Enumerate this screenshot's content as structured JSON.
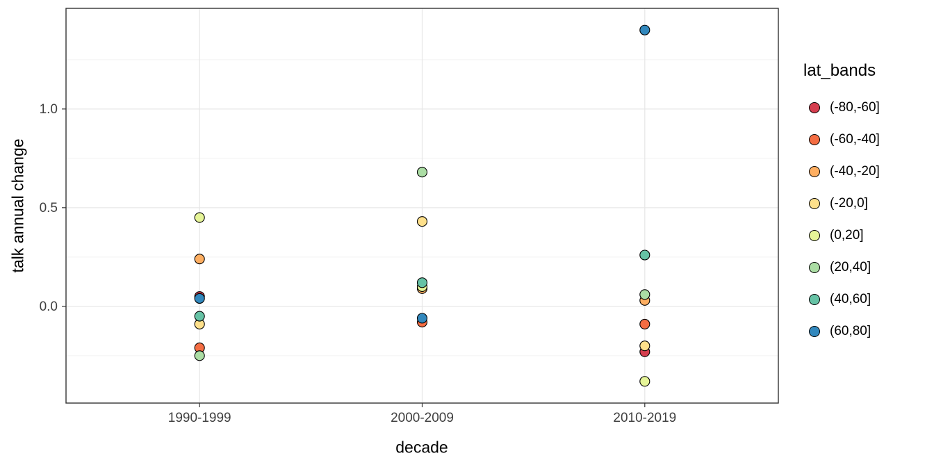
{
  "chart_data": {
    "type": "scatter",
    "title": "",
    "xlabel": "decade",
    "ylabel": "talk annual change",
    "categories": [
      "1990-1999",
      "2000-2009",
      "2010-2019"
    ],
    "ylim": [
      -0.49,
      1.51
    ],
    "yticks": [
      0.0,
      0.5,
      1.0
    ],
    "ytick_labels": [
      "0.0",
      "0.5",
      "1.0"
    ],
    "yticks_minor": [
      -0.25,
      0.25,
      0.75,
      1.25
    ],
    "grid": true,
    "legend_title": "lat_bands",
    "legend_position": "right",
    "series": [
      {
        "name": "(-80,-60]",
        "color": "#D53E4F",
        "values": [
          0.05,
          null,
          -0.23
        ]
      },
      {
        "name": "(-60,-40]",
        "color": "#F46D43",
        "values": [
          -0.21,
          -0.08,
          -0.09
        ]
      },
      {
        "name": "(-40,-20]",
        "color": "#FDAE61",
        "values": [
          0.24,
          0.09,
          0.03
        ]
      },
      {
        "name": "(-20,0]",
        "color": "#FEE08B",
        "values": [
          -0.09,
          0.43,
          -0.2
        ]
      },
      {
        "name": "(0,20]",
        "color": "#E6F598",
        "values": [
          0.45,
          0.1,
          -0.38
        ]
      },
      {
        "name": "(20,40]",
        "color": "#ABDDA4",
        "values": [
          -0.25,
          0.68,
          0.06
        ]
      },
      {
        "name": "(40,60]",
        "color": "#66C2A5",
        "values": [
          -0.05,
          0.12,
          0.26
        ]
      },
      {
        "name": "(60,80]",
        "color": "#3288BD",
        "values": [
          0.04,
          -0.06,
          1.4
        ]
      }
    ],
    "point_style": {
      "radius": 7,
      "stroke": "#000000"
    }
  },
  "colors": {
    "background": "#ffffff",
    "panel_border": "#333333",
    "grid_major": "#e7e7e7",
    "grid_minor": "#f2f2f2",
    "axis_text": "#404040",
    "tick_mark": "#333333"
  }
}
